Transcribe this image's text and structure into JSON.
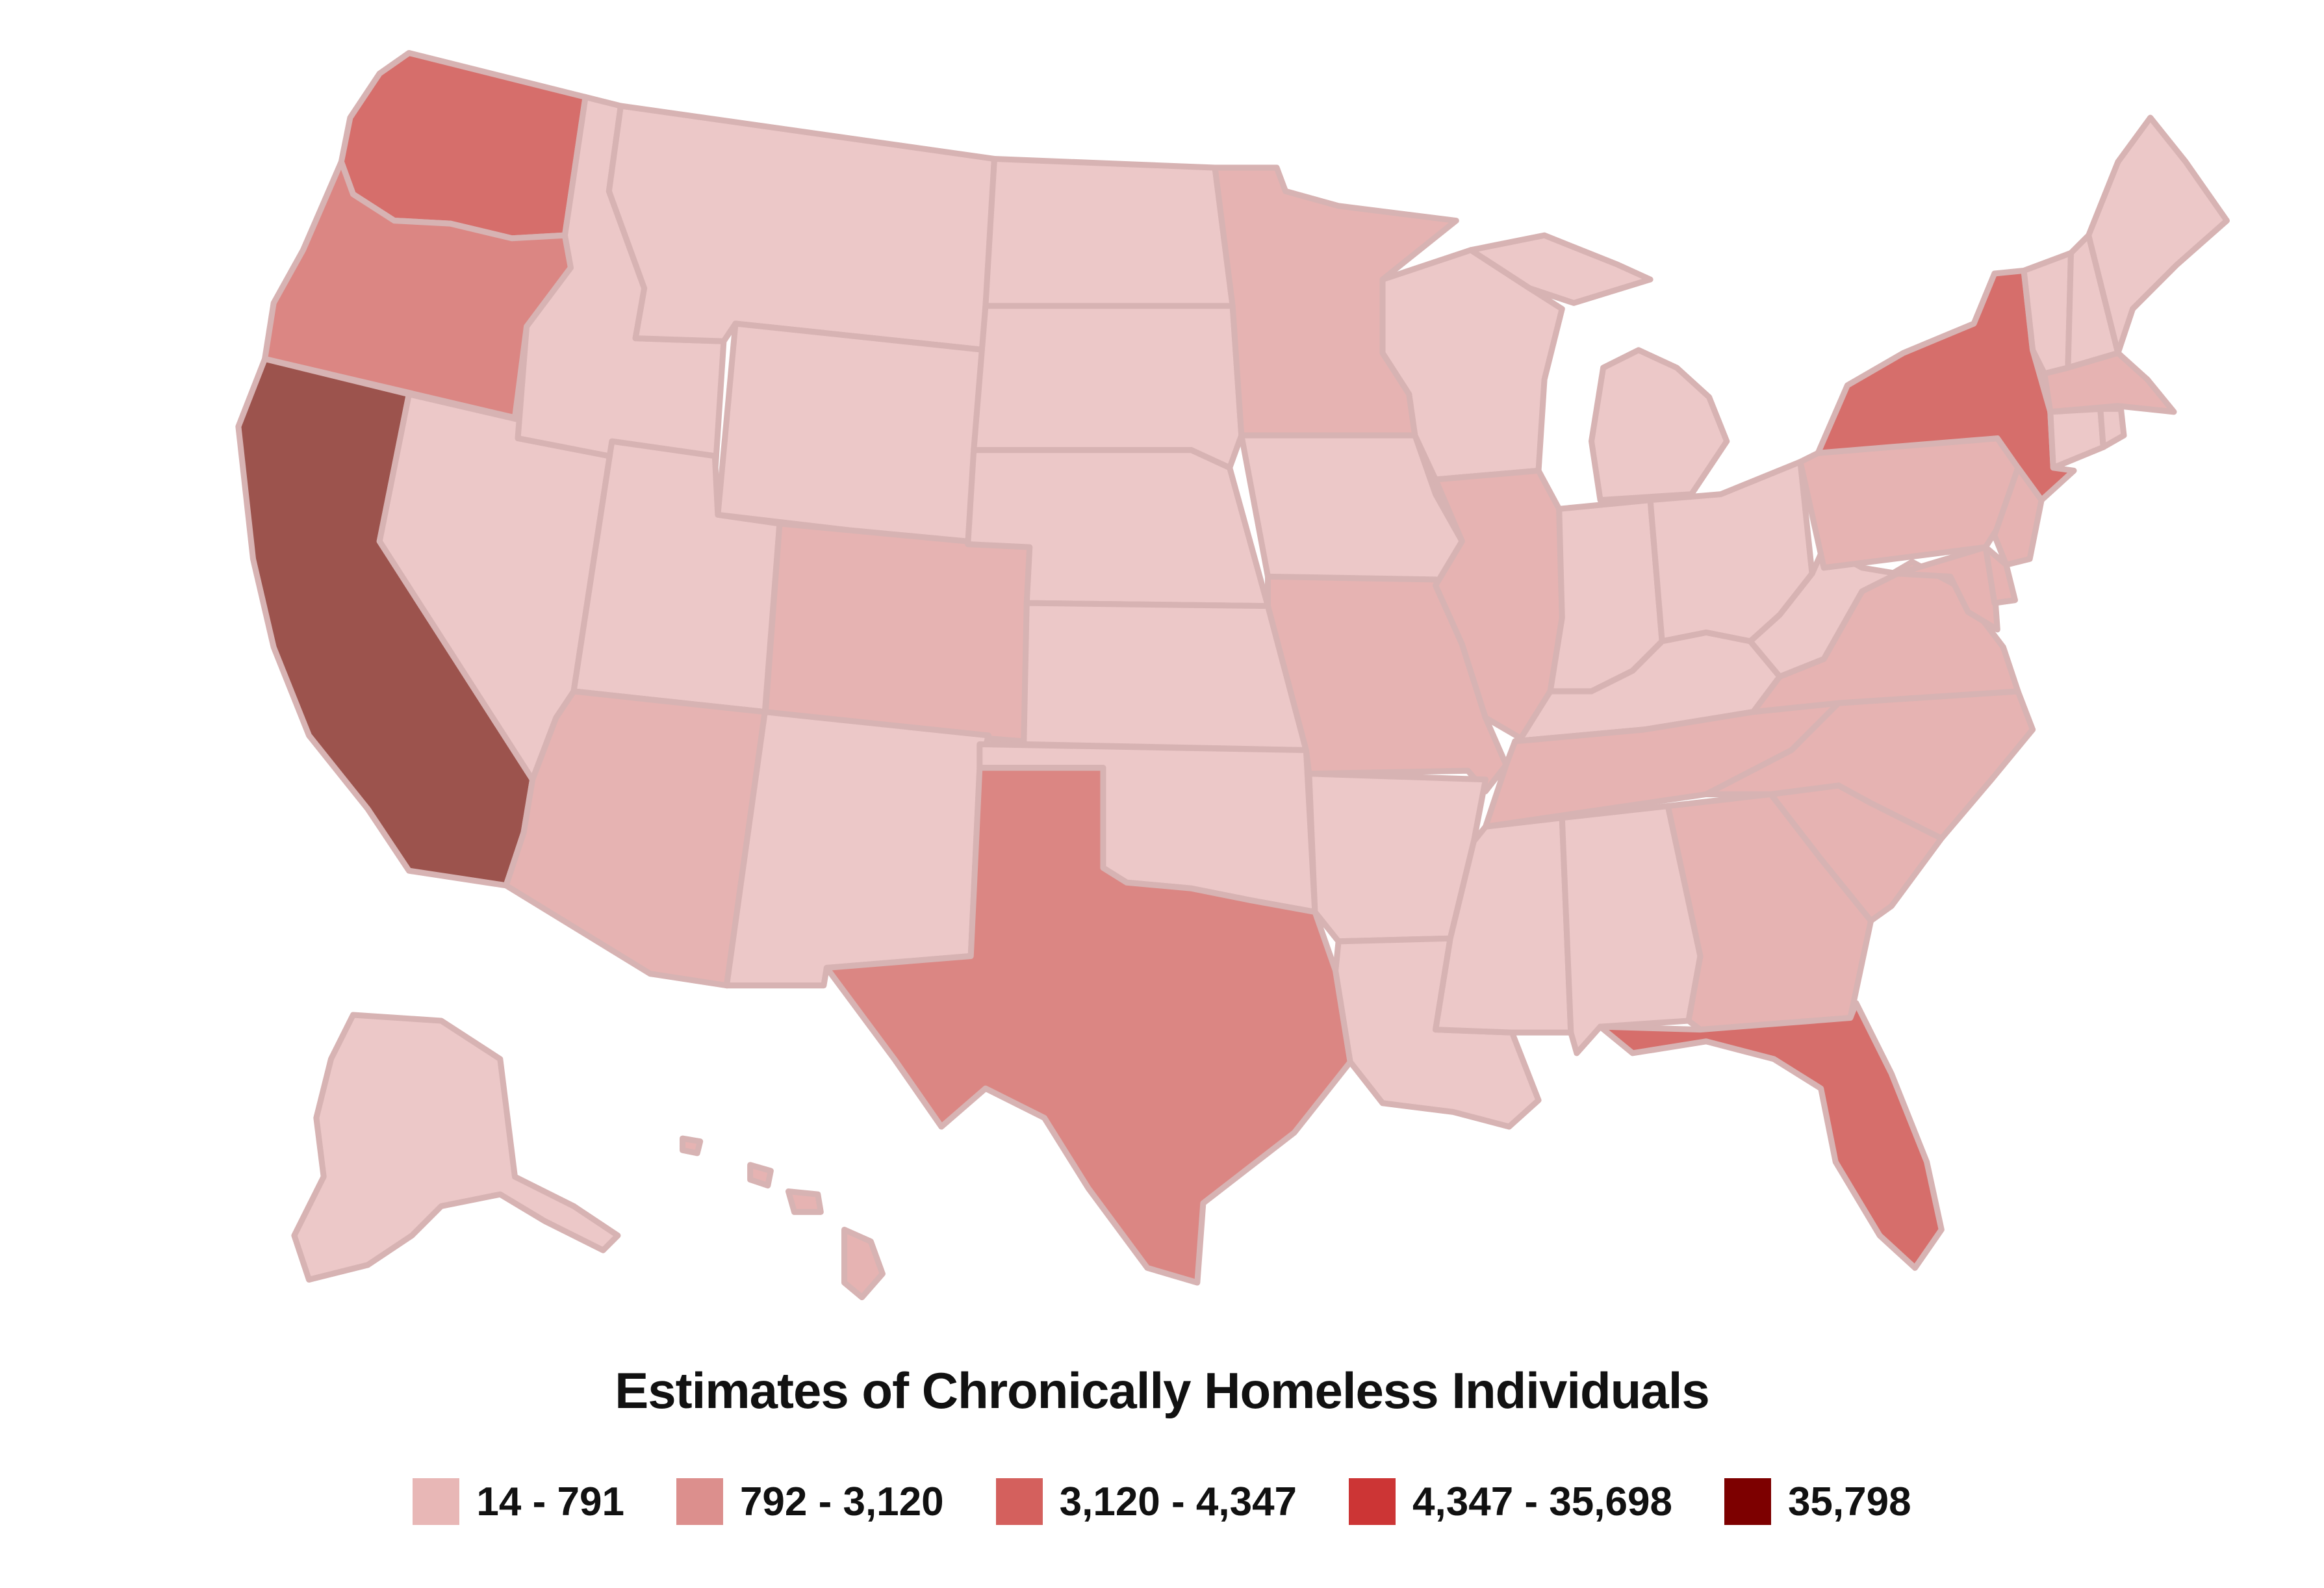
{
  "title": "Estimates of Chronically Homeless Individuals",
  "legend": [
    {
      "label": "14 - 791",
      "color": "#e8b7b6"
    },
    {
      "label": "792 - 3,120",
      "color": "#dc8f8d"
    },
    {
      "label": "3,120 - 4,347",
      "color": "#d4605d"
    },
    {
      "label": "4,347 - 35,698",
      "color": "#cc3535"
    },
    {
      "label": "35,798",
      "color": "#7d0000"
    }
  ],
  "state_fills": {
    "base_light": "#ecc8c8",
    "light": "#e6b3b2",
    "medium": "#db8683",
    "strong": "#d66e6b",
    "darkest": "#9c534d"
  },
  "states": [
    {
      "name": "Washington",
      "tier": "strong"
    },
    {
      "name": "Oregon",
      "tier": "medium"
    },
    {
      "name": "California",
      "tier": "darkest"
    },
    {
      "name": "Nevada",
      "tier": "base_light"
    },
    {
      "name": "Idaho",
      "tier": "base_light"
    },
    {
      "name": "Montana",
      "tier": "base_light"
    },
    {
      "name": "Wyoming",
      "tier": "base_light"
    },
    {
      "name": "Utah",
      "tier": "base_light"
    },
    {
      "name": "Arizona",
      "tier": "light"
    },
    {
      "name": "Colorado",
      "tier": "light"
    },
    {
      "name": "New Mexico",
      "tier": "base_light"
    },
    {
      "name": "North Dakota",
      "tier": "base_light"
    },
    {
      "name": "South Dakota",
      "tier": "base_light"
    },
    {
      "name": "Nebraska",
      "tier": "base_light"
    },
    {
      "name": "Kansas",
      "tier": "base_light"
    },
    {
      "name": "Oklahoma",
      "tier": "base_light"
    },
    {
      "name": "Texas",
      "tier": "medium"
    },
    {
      "name": "Minnesota",
      "tier": "light"
    },
    {
      "name": "Iowa",
      "tier": "base_light"
    },
    {
      "name": "Missouri",
      "tier": "light"
    },
    {
      "name": "Arkansas",
      "tier": "base_light"
    },
    {
      "name": "Louisiana",
      "tier": "base_light"
    },
    {
      "name": "Wisconsin",
      "tier": "base_light"
    },
    {
      "name": "Illinois",
      "tier": "light"
    },
    {
      "name": "Michigan",
      "tier": "base_light"
    },
    {
      "name": "Indiana",
      "tier": "base_light"
    },
    {
      "name": "Ohio",
      "tier": "base_light"
    },
    {
      "name": "Kentucky",
      "tier": "base_light"
    },
    {
      "name": "Tennessee",
      "tier": "light"
    },
    {
      "name": "Mississippi",
      "tier": "base_light"
    },
    {
      "name": "Alabama",
      "tier": "base_light"
    },
    {
      "name": "Georgia",
      "tier": "light"
    },
    {
      "name": "Florida",
      "tier": "strong"
    },
    {
      "name": "South Carolina",
      "tier": "light"
    },
    {
      "name": "North Carolina",
      "tier": "light"
    },
    {
      "name": "Virginia",
      "tier": "light"
    },
    {
      "name": "West Virginia",
      "tier": "base_light"
    },
    {
      "name": "Pennsylvania",
      "tier": "light"
    },
    {
      "name": "New York",
      "tier": "strong"
    },
    {
      "name": "New Jersey",
      "tier": "light"
    },
    {
      "name": "Maryland",
      "tier": "light"
    },
    {
      "name": "Delaware",
      "tier": "light"
    },
    {
      "name": "Vermont",
      "tier": "base_light"
    },
    {
      "name": "New Hampshire",
      "tier": "base_light"
    },
    {
      "name": "Maine",
      "tier": "base_light"
    },
    {
      "name": "Massachusetts",
      "tier": "light"
    },
    {
      "name": "Connecticut",
      "tier": "base_light"
    },
    {
      "name": "Rhode Island",
      "tier": "base_light"
    },
    {
      "name": "Alaska",
      "tier": "base_light"
    },
    {
      "name": "Hawaii",
      "tier": "light"
    }
  ]
}
